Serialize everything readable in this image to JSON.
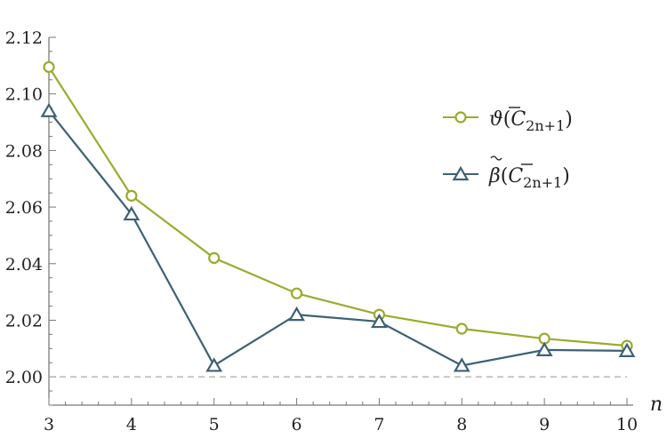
{
  "chart_data": {
    "type": "line",
    "xlabel": "n",
    "ylabel": "",
    "title": "",
    "x": [
      3,
      4,
      5,
      6,
      7,
      8,
      9,
      10
    ],
    "xlim": [
      3,
      10
    ],
    "ylim": [
      1.99,
      2.12
    ],
    "xticks": [
      "3",
      "4",
      "5",
      "6",
      "7",
      "8",
      "9",
      "10"
    ],
    "yticks": [
      "2.00",
      "2.02",
      "2.04",
      "2.06",
      "2.08",
      "2.10",
      "2.12"
    ],
    "reference_line": 2.0,
    "legend_position": "top-right",
    "series": [
      {
        "name": "ϑ(C̄2n+1)",
        "color": "#9aab2e",
        "marker": "circle",
        "values": [
          2.1095,
          2.064,
          2.042,
          2.0295,
          2.022,
          2.017,
          2.0135,
          2.011
        ]
      },
      {
        "name": "β̃(C̄2n+1)",
        "color": "#3d6274",
        "marker": "triangle",
        "values": [
          2.094,
          2.0575,
          2.004,
          2.022,
          2.0195,
          2.004,
          2.0095,
          2.0092
        ]
      }
    ],
    "legend": {
      "series1": {
        "symbol": "ϑ",
        "base": "C",
        "sub": "2n+1"
      },
      "series2": {
        "symbol": "β",
        "base": "C",
        "sub": "2n+1"
      }
    }
  }
}
